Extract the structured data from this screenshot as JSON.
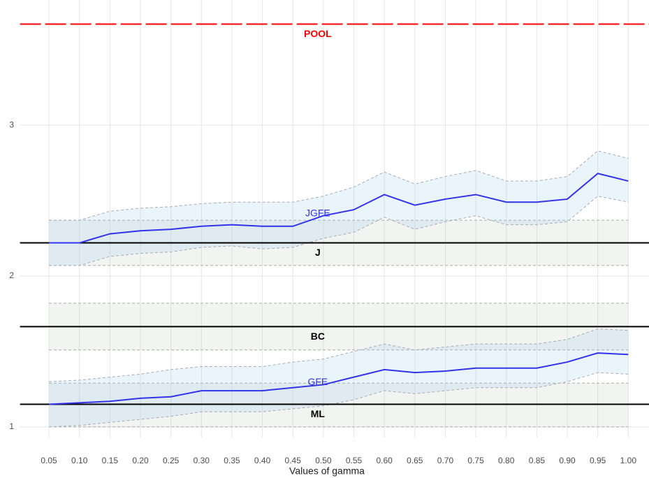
{
  "chart_data": {
    "type": "line",
    "x_label": "Values of gamma",
    "x": [
      0.05,
      0.1,
      0.15,
      0.2,
      0.25,
      0.3,
      0.35,
      0.4,
      0.45,
      0.5,
      0.55,
      0.6,
      0.65,
      0.7,
      0.75,
      0.8,
      0.85,
      0.9,
      0.95,
      1.0
    ],
    "xlim": [
      0.0025,
      1.034
    ],
    "xticks": [
      0.05,
      {
        "value": 0.1,
        "label": "0.10"
      },
      0.15,
      {
        "value": 0.2,
        "label": "0.20"
      },
      0.25,
      {
        "value": 0.3,
        "label": "0.30"
      },
      0.35,
      {
        "value": 0.4,
        "label": "0.40"
      },
      0.45,
      {
        "value": 0.5,
        "label": "0.50"
      },
      0.55,
      {
        "value": 0.6,
        "label": "0.60"
      },
      0.65,
      {
        "value": 0.7,
        "label": "0.70"
      },
      0.75,
      {
        "value": 0.8,
        "label": "0.80"
      },
      0.85,
      {
        "value": 0.9,
        "label": "0.90"
      },
      0.95,
      {
        "value": 1.0,
        "label": "1.00"
      }
    ],
    "ylim": [
      0.93,
      3.83
    ],
    "yticks": [
      1,
      2,
      3
    ],
    "grid": true,
    "series": [
      {
        "name": "JGFE",
        "color": "#3333ee",
        "values": [
          2.22,
          2.22,
          2.28,
          2.3,
          2.31,
          2.33,
          2.34,
          2.33,
          2.33,
          2.4,
          2.44,
          2.54,
          2.47,
          2.51,
          2.54,
          2.49,
          2.49,
          2.51,
          2.68,
          2.63
        ],
        "upper": [
          2.37,
          2.37,
          2.43,
          2.45,
          2.46,
          2.48,
          2.49,
          2.49,
          2.49,
          2.53,
          2.59,
          2.69,
          2.61,
          2.66,
          2.7,
          2.63,
          2.63,
          2.66,
          2.83,
          2.78
        ],
        "lower": [
          2.07,
          2.07,
          2.13,
          2.15,
          2.16,
          2.19,
          2.2,
          2.18,
          2.19,
          2.25,
          2.29,
          2.39,
          2.31,
          2.36,
          2.4,
          2.34,
          2.34,
          2.36,
          2.53,
          2.49
        ]
      },
      {
        "name": "GFE",
        "color": "#3333ee",
        "values": [
          1.15,
          1.16,
          1.17,
          1.19,
          1.2,
          1.24,
          1.24,
          1.24,
          1.26,
          1.28,
          1.33,
          1.38,
          1.36,
          1.37,
          1.39,
          1.39,
          1.39,
          1.43,
          1.49,
          1.48
        ],
        "upper": [
          1.3,
          1.31,
          1.33,
          1.35,
          1.38,
          1.4,
          1.4,
          1.4,
          1.43,
          1.45,
          1.5,
          1.55,
          1.51,
          1.53,
          1.55,
          1.55,
          1.55,
          1.58,
          1.65,
          1.64
        ],
        "lower": [
          1.0,
          1.01,
          1.03,
          1.05,
          1.07,
          1.1,
          1.1,
          1.1,
          1.12,
          1.14,
          1.18,
          1.24,
          1.22,
          1.24,
          1.26,
          1.26,
          1.26,
          1.3,
          1.36,
          1.35
        ]
      }
    ],
    "hlines": [
      {
        "name": "POOL",
        "color": "#ff0000",
        "value": 3.67,
        "dashed": true
      },
      {
        "name": "J",
        "color": "#000000",
        "value": 2.22,
        "lower": 2.07,
        "upper": 2.37
      },
      {
        "name": "BC",
        "color": "#000000",
        "value": 1.665,
        "lower": 1.51,
        "upper": 1.82
      },
      {
        "name": "ML",
        "color": "#000000",
        "value": 1.15,
        "lower": 1.0,
        "upper": 1.29
      }
    ]
  }
}
